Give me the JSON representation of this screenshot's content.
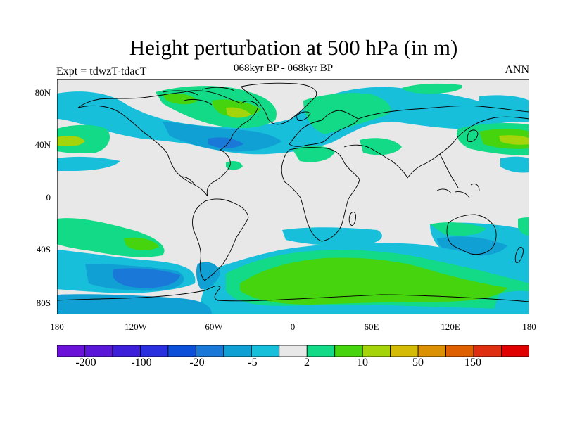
{
  "title": "Height perturbation at 500 hPa (in m)",
  "subtitle": "068kyr BP - 068kyr BP",
  "left_label": "Expt = tdwzT-tdacT",
  "right_label": "ANN",
  "y_ticks": [
    "80N",
    "40N",
    "0",
    "40S",
    "80S"
  ],
  "x_ticks": [
    "180",
    "120W",
    "60W",
    "0",
    "60E",
    "120E",
    "180"
  ],
  "colorbar": {
    "colors": [
      "#6a12d8",
      "#5a17d8",
      "#3e1fd9",
      "#2a30dd",
      "#0c4fd8",
      "#1a79d8",
      "#11a0d4",
      "#17bfdb",
      "#e8e8e8",
      "#12da86",
      "#46d40e",
      "#a5d40a",
      "#d4bb06",
      "#dc9104",
      "#de6000",
      "#de3010",
      "#e00000"
    ],
    "labels": [
      "-200",
      "-100",
      "-20",
      "-5",
      "2",
      "10",
      "50",
      "150"
    ]
  },
  "colors": {
    "background": "#e8e8e8",
    "light_blue": "#17bfdb",
    "mid_blue": "#11a0d4",
    "blue": "#1a79d8",
    "teal_green": "#12da86",
    "green": "#46d40e",
    "yellow_green": "#a5d40a"
  }
}
